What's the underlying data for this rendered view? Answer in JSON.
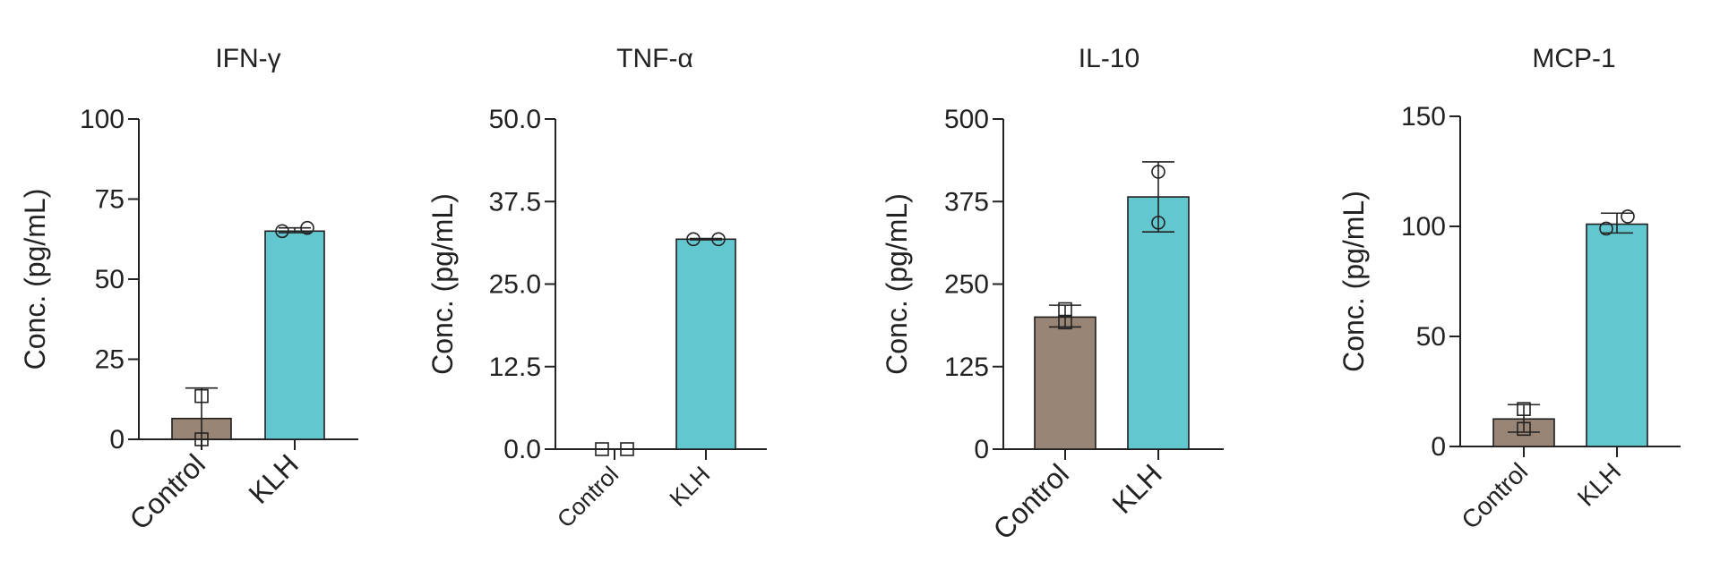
{
  "chart_data": [
    {
      "type": "bar",
      "title": "IFN-γ",
      "ylabel": "Conc. (pg/mL)",
      "categories": [
        "Control",
        "KLH"
      ],
      "values": [
        6.5,
        65
      ],
      "errors": [
        [
          0,
          16
        ],
        [
          64.5,
          66
        ]
      ],
      "points": [
        [
          13.5,
          0
        ],
        [
          65,
          66
        ]
      ],
      "ylim": [
        0,
        100
      ],
      "yticks": [
        0,
        25,
        50,
        75,
        100
      ],
      "ytick_labels": [
        "0",
        "25",
        "50",
        "75",
        "100"
      ],
      "colors": [
        "#998575",
        "#63c7cf"
      ],
      "markers": [
        "square",
        "circle"
      ]
    },
    {
      "type": "bar",
      "title": "TNF-α",
      "ylabel": "Conc. (pg/mL)",
      "categories": [
        "Control",
        "KLH"
      ],
      "values": [
        0,
        31.8
      ],
      "errors": [
        [
          0,
          0
        ],
        [
          31.7,
          31.9
        ]
      ],
      "points": [
        [
          0,
          0
        ],
        [
          31.8,
          31.8
        ]
      ],
      "ylim": [
        0,
        50
      ],
      "yticks": [
        0,
        12.5,
        25,
        37.5,
        50
      ],
      "ytick_labels": [
        "0.0",
        "12.5",
        "25.0",
        "37.5",
        "50.0"
      ],
      "colors": [
        "#998575",
        "#63c7cf"
      ],
      "markers": [
        "square",
        "circle"
      ]
    },
    {
      "type": "bar",
      "title": "IL-10",
      "ylabel": "Conc. (pg/mL)",
      "categories": [
        "Control",
        "KLH"
      ],
      "values": [
        200,
        382
      ],
      "errors": [
        [
          185,
          218
        ],
        [
          329,
          435
        ]
      ],
      "points": [
        [
          212,
          192
        ],
        [
          420,
          343
        ]
      ],
      "ylim": [
        0,
        500
      ],
      "yticks": [
        0,
        125,
        250,
        375,
        500
      ],
      "ytick_labels": [
        "0",
        "125",
        "250",
        "375",
        "500"
      ],
      "colors": [
        "#998575",
        "#63c7cf"
      ],
      "markers": [
        "square",
        "circle"
      ]
    },
    {
      "type": "bar",
      "title": "MCP-1",
      "ylabel": "Conc. (pg/mL)",
      "categories": [
        "Control",
        "KLH"
      ],
      "values": [
        12.5,
        101
      ],
      "errors": [
        [
          6.5,
          19
        ],
        [
          97,
          106
        ]
      ],
      "points": [
        [
          17,
          8
        ],
        [
          99,
          104.5
        ]
      ],
      "ylim": [
        0,
        150
      ],
      "yticks": [
        0,
        50,
        100,
        150
      ],
      "ytick_labels": [
        "0",
        "50",
        "100",
        "150"
      ],
      "colors": [
        "#998575",
        "#63c7cf"
      ],
      "markers": [
        "square",
        "circle"
      ]
    }
  ]
}
